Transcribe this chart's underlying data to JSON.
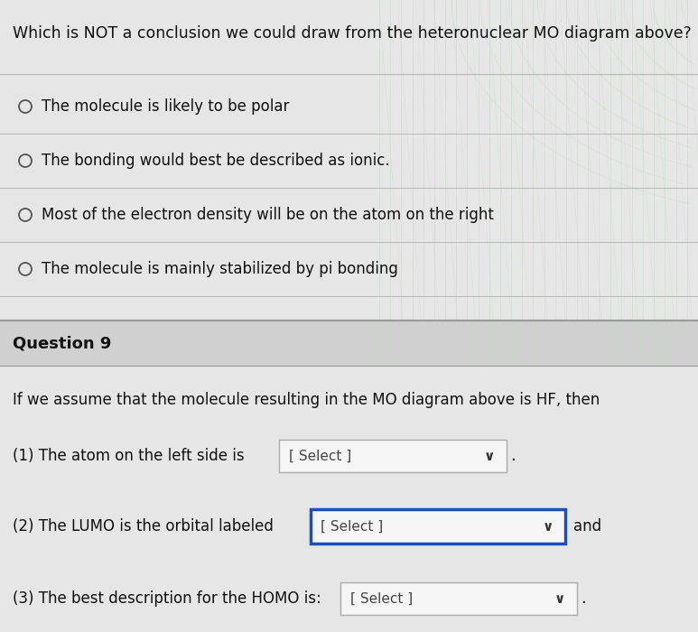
{
  "title": "Which is NOT a conclusion we could draw from the heteronuclear MO diagram above?",
  "title_fontsize": 12.5,
  "options": [
    "The molecule is likely to be polar",
    "The bonding would best be described as ionic.",
    "Most of the electron density will be on the atom on the right",
    "The molecule is mainly stabilized by pi bonding"
  ],
  "options_fontsize": 12,
  "section2_header": "Question 9",
  "section2_header_fontsize": 13,
  "section2_text": "If we assume that the molecule resulting in the MO diagram above is HF, then",
  "section2_text_fontsize": 12,
  "q1_label": "(1) The atom on the left side is",
  "q1_select": "[ Select ]",
  "q2_label": "(2) The LUMO is the orbital labeled",
  "q2_select": "[ Select ]",
  "q2_and": "and",
  "q3_label": "(3) The best description for the HOMO is:",
  "q3_select": "[ Select ]",
  "q_fontsize": 12,
  "bg_top": "#e6e6e6",
  "bg_header": "#d0d0d0",
  "bg_body": "#e6e6e6",
  "box_fill": "#f5f5f5",
  "box_border_normal": "#aaaaaa",
  "box_border_selected": "#1a4fbd",
  "text_color": "#111111",
  "divider_color": "#b8b8b8",
  "watermark_line_color": "#c8dac8",
  "radio_color": "#555555"
}
